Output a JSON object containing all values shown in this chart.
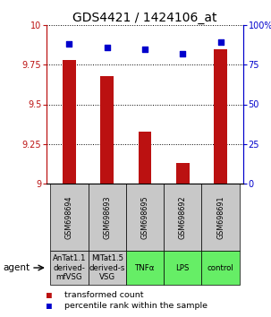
{
  "title": "GDS4421 / 1424106_at",
  "categories": [
    "GSM698694",
    "GSM698693",
    "GSM698695",
    "GSM698692",
    "GSM698691"
  ],
  "bar_values": [
    9.78,
    9.68,
    9.33,
    9.13,
    9.85
  ],
  "percentile_values": [
    88,
    86,
    85,
    82,
    89
  ],
  "ylim_left": [
    9.0,
    10.0
  ],
  "ylim_right": [
    0,
    100
  ],
  "yticks_left": [
    9.0,
    9.25,
    9.5,
    9.75,
    10.0
  ],
  "ytick_labels_left": [
    "9",
    "9.25",
    "9.5",
    "9.75",
    "10"
  ],
  "yticks_right": [
    0,
    25,
    50,
    75,
    100
  ],
  "ytick_labels_right": [
    "0",
    "25",
    "50",
    "75",
    "100%"
  ],
  "bar_color": "#bb1111",
  "scatter_color": "#0000cc",
  "agent_labels": [
    "AnTat1.1\nderived-\nmfVSG",
    "MITat1.5\nderived-s\nVSG",
    "TNFα",
    "LPS",
    "control"
  ],
  "agent_colors": [
    "#c8c8c8",
    "#c8c8c8",
    "#66ee66",
    "#66ee66",
    "#66ee66"
  ],
  "gsm_bg_color": "#c8c8c8",
  "legend_bar_label": "transformed count",
  "legend_scatter_label": "percentile rank within the sample",
  "title_fontsize": 10,
  "tick_fontsize": 7,
  "gsm_fontsize": 5.8,
  "agent_fontsize": 6.2,
  "legend_fontsize": 6.8,
  "bar_width": 0.35
}
